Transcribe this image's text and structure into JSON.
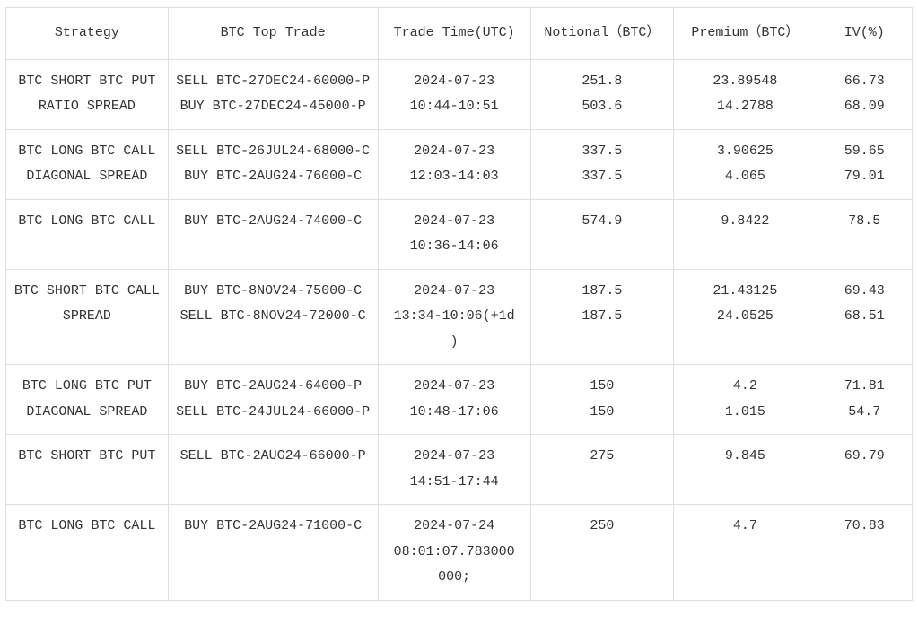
{
  "table": {
    "font_family": "Courier New / monospace",
    "font_size_pt": 11,
    "text_color": "#333333",
    "border_color": "#e0e0e0",
    "background_color": "#ffffff",
    "columns": [
      {
        "key": "strategy",
        "label": "Strategy",
        "align": "center",
        "width_pct": 17
      },
      {
        "key": "trade",
        "label": "BTC Top Trade",
        "align": "center",
        "width_pct": 22
      },
      {
        "key": "time",
        "label": "Trade Time(UTC)",
        "align": "center",
        "width_pct": 16
      },
      {
        "key": "notional",
        "label": "Notional（BTC）",
        "align": "center",
        "width_pct": 15
      },
      {
        "key": "premium",
        "label": "Premium（BTC）",
        "align": "center",
        "width_pct": 15
      },
      {
        "key": "iv",
        "label": "IV(%)",
        "align": "center",
        "width_pct": 10
      }
    ],
    "rows": [
      {
        "strategy": "BTC SHORT BTC PUT\nRATIO SPREAD",
        "trade": "SELL BTC-27DEC24-60000-P\nBUY BTC-27DEC24-45000-P",
        "time": "2024-07-23\n10:44-10:51",
        "notional": "251.8\n503.6",
        "premium": "23.89548\n14.2788",
        "iv": "66.73\n68.09"
      },
      {
        "strategy": "BTC LONG BTC CALL\nDIAGONAL SPREAD",
        "trade": "SELL BTC-26JUL24-68000-C\nBUY BTC-2AUG24-76000-C",
        "time": "2024-07-23\n12:03-14:03\n ",
        "notional": "337.5\n337.5",
        "premium": "3.90625\n4.065",
        "iv": "59.65\n79.01"
      },
      {
        "strategy": "BTC LONG BTC CALL",
        "trade": "BUY BTC-2AUG24-74000-C",
        "time": "2024-07-23\n10:36-14:06",
        "notional": "574.9",
        "premium": "9.8422",
        "iv": "78.5"
      },
      {
        "strategy": "BTC SHORT BTC CALL\nSPREAD",
        "trade": "BUY BTC-8NOV24-75000-C\nSELL BTC-8NOV24-72000-C",
        "time": "2024-07-23\n13:34-10:06(+1d\n)",
        "notional": "187.5\n187.5",
        "premium": "21.43125\n24.0525",
        "iv": "69.43\n68.51"
      },
      {
        "strategy": "BTC LONG BTC PUT\nDIAGONAL SPREAD",
        "trade": "BUY BTC-2AUG24-64000-P\nSELL BTC-24JUL24-66000-P",
        "time": "2024-07-23\n10:48-17:06",
        "notional": "150\n150",
        "premium": "4.2\n1.015",
        "iv": "71.81\n54.7"
      },
      {
        "strategy": "BTC SHORT BTC PUT",
        "trade": "SELL BTC-2AUG24-66000-P",
        "time": "2024-07-23\n14:51-17:44",
        "notional": "275",
        "premium": "9.845",
        "iv": "69.79"
      },
      {
        "strategy": "BTC LONG BTC CALL",
        "trade": "BUY BTC-2AUG24-71000-C",
        "time": "2024-07-24\n08:01:07.783000\n000;",
        "notional": "250",
        "premium": "4.7",
        "iv": "70.83"
      }
    ]
  }
}
